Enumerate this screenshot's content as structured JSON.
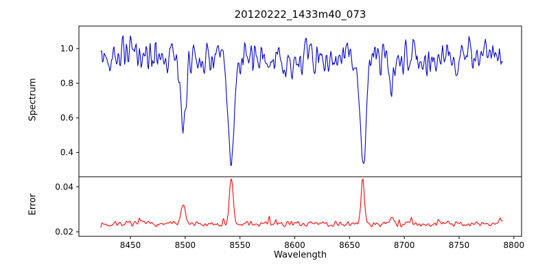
{
  "figure": {
    "title": "20120222_1433m40_073",
    "xlabel": "Wavelength",
    "background_color": "#ffffff",
    "axes_color": "#000000"
  },
  "chart_data": [
    {
      "type": "line",
      "panel": "top",
      "series_name": "spectrum",
      "ylabel": "Spectrum",
      "line_color": "#0000cd",
      "xlim": [
        8403,
        8807
      ],
      "ylim": [
        0.26,
        1.13
      ],
      "x_range": [
        8423,
        8790
      ],
      "x_step": 0.75,
      "xticks": [
        8450,
        8500,
        8550,
        8600,
        8650,
        8700,
        8750,
        8800
      ],
      "xtick_labels": [
        "8450",
        "8500",
        "8550",
        "8600",
        "8650",
        "8700",
        "8750",
        "8800"
      ],
      "yticks": [
        0.4,
        0.6,
        0.8,
        1.0
      ],
      "ytick_labels": [
        "0.4",
        "0.6",
        "0.8",
        "1.0"
      ],
      "continuum": 0.95,
      "noise_amplitude": 0.13,
      "random_dip_probability": 0.07,
      "random_dip_depth": [
        0.02,
        0.12
      ],
      "absorption_lines": [
        {
          "center": 8498,
          "depth": 0.46,
          "width": 2.4
        },
        {
          "center": 8542,
          "depth": 0.62,
          "width": 2.8
        },
        {
          "center": 8662,
          "depth": 0.63,
          "width": 2.6
        },
        {
          "center": 8688,
          "depth": 0.25,
          "width": 1.6
        }
      ],
      "seed": 42,
      "grid": false,
      "legend": "none"
    },
    {
      "type": "line",
      "panel": "bottom",
      "series_name": "error",
      "ylabel": "Error",
      "line_color": "#ff0000",
      "ylim": [
        0.018,
        0.0445
      ],
      "yticks": [
        0.02,
        0.04
      ],
      "ytick_labels": [
        "0.02",
        "0.04"
      ],
      "baseline": 0.0235,
      "noise_amplitude": 0.0016,
      "error_peaks": [
        {
          "center": 8498,
          "height": 0.008,
          "width": 1.9
        },
        {
          "center": 8542,
          "height": 0.0205,
          "width": 1.7
        },
        {
          "center": 8662,
          "height": 0.021,
          "width": 1.4
        },
        {
          "center": 8688,
          "height": 0.0035,
          "width": 1.4
        }
      ],
      "seed": 7,
      "grid": false,
      "legend": "none"
    }
  ]
}
